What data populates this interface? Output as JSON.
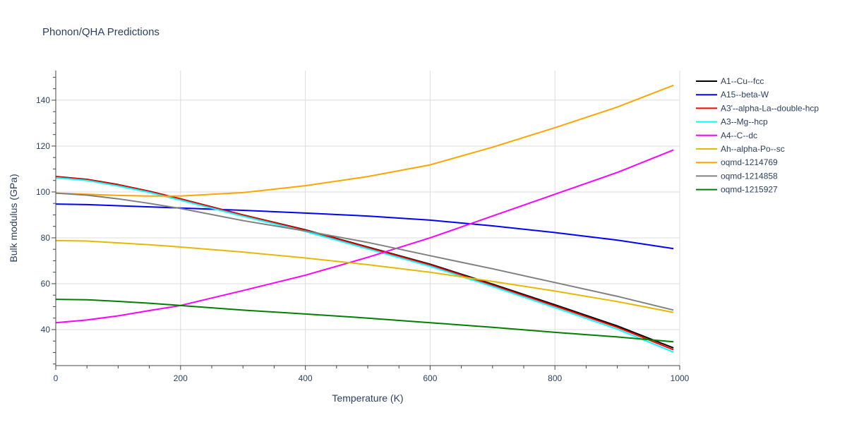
{
  "chart_data": {
    "type": "line",
    "title": "Phonon/QHA Predictions",
    "xlabel": "Temperature (K)",
    "ylabel": "Bulk modulus (GPa)",
    "xlim": [
      0,
      1000
    ],
    "ylim": [
      24.3,
      152.9
    ],
    "xticks": [
      0,
      200,
      400,
      600,
      800,
      1000
    ],
    "yticks": [
      40,
      60,
      80,
      100,
      120,
      140
    ],
    "grid": true,
    "legend_position": "right",
    "x": [
      0,
      50,
      100,
      150,
      200,
      300,
      400,
      500,
      600,
      700,
      800,
      900,
      990
    ],
    "series": [
      {
        "name": "A1--Cu--fcc",
        "color": "#000000",
        "values": [
          106.7,
          105.5,
          103.2,
          100.3,
          97,
          90,
          83.5,
          76,
          68.5,
          59.8,
          50.8,
          41.6,
          32
        ]
      },
      {
        "name": "A15--beta-W",
        "color": "#0000ff",
        "values": [
          94.7,
          94.5,
          94,
          93.5,
          93,
          92,
          90.8,
          89.5,
          87.7,
          85.2,
          82.3,
          79,
          75.3
        ]
      },
      {
        "name": "A3'--alpha-La--double-hcp",
        "color": "#ff0000",
        "values": [
          106.6,
          105.4,
          103.1,
          100.2,
          96.9,
          89.9,
          83.3,
          75.8,
          68.2,
          59.4,
          50.3,
          41,
          31.2
        ]
      },
      {
        "name": "A3--Mg--hcp",
        "color": "#00ffff",
        "values": [
          106.2,
          105,
          102.6,
          99.8,
          96.4,
          89.4,
          82.8,
          75.2,
          67.6,
          58.8,
          49.6,
          40.2,
          30.2
        ]
      },
      {
        "name": "A4--C--dc",
        "color": "#ff00ff",
        "values": [
          43,
          44.2,
          46,
          48.3,
          50.5,
          57,
          63.7,
          71.5,
          80,
          89.5,
          99,
          108.5,
          118.3
        ]
      },
      {
        "name": "Ah--alpha-Po--sc",
        "color": "#e6b800",
        "values": [
          78.8,
          78.6,
          77.8,
          77,
          76,
          73.8,
          71.2,
          68.3,
          65,
          61,
          56.8,
          52.2,
          47.5
        ]
      },
      {
        "name": "oqmd-1214769",
        "color": "#ffa500",
        "values": [
          99.5,
          99,
          98.5,
          98.2,
          98.2,
          99.7,
          102.7,
          106.7,
          111.8,
          119.5,
          128,
          137,
          146.5
        ]
      },
      {
        "name": "oqmd-1214858",
        "color": "#808080",
        "values": [
          99.5,
          98.6,
          97,
          95,
          92.8,
          87.5,
          83,
          78,
          72.2,
          66.5,
          60.5,
          54.5,
          48.5
        ]
      },
      {
        "name": "oqmd-1215927",
        "color": "#008000",
        "values": [
          53.2,
          53,
          52.3,
          51.5,
          50.5,
          48.5,
          46.8,
          45,
          43,
          41,
          38.8,
          36.8,
          34.7
        ]
      }
    ]
  }
}
